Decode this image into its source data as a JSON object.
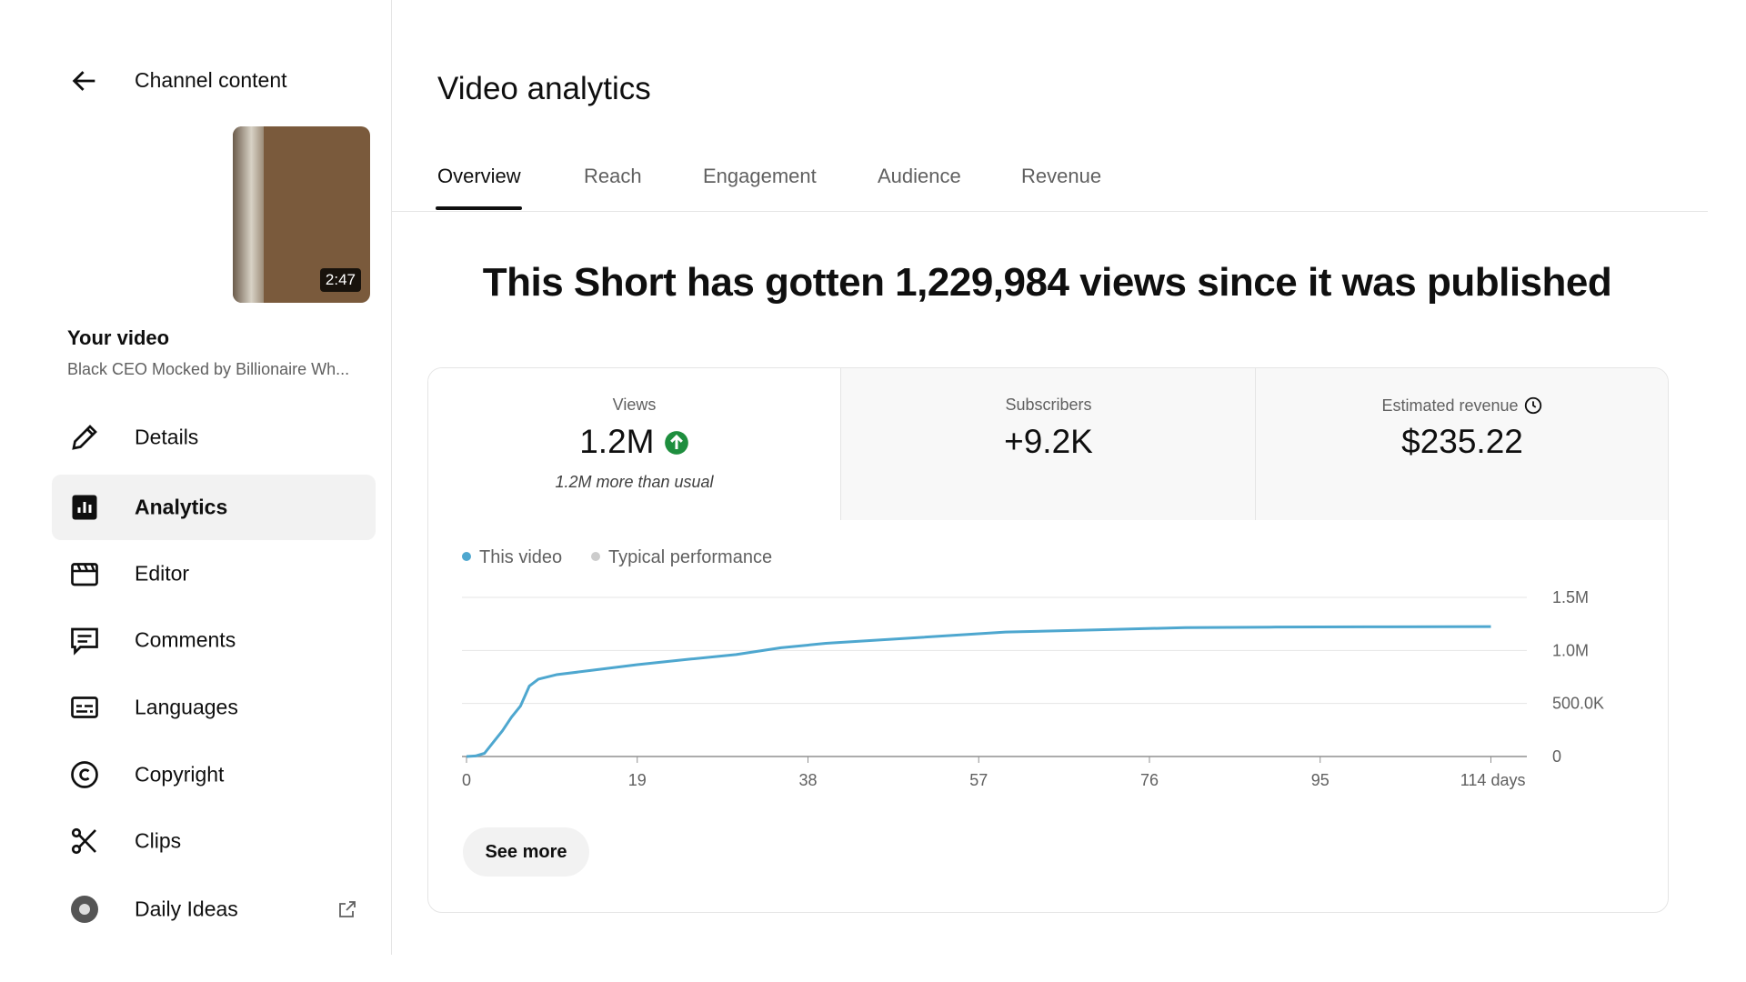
{
  "sidebar": {
    "back_label": "Channel content",
    "thumbnail_duration": "2:47",
    "your_video_label": "Your video",
    "video_title": "Black CEO Mocked by Billionaire Wh...",
    "nav": [
      "Details",
      "Analytics",
      "Editor",
      "Comments",
      "Languages",
      "Copyright",
      "Clips",
      "Daily Ideas"
    ]
  },
  "header": {
    "title": "Video analytics",
    "tabs": [
      "Overview",
      "Reach",
      "Engagement",
      "Audience",
      "Revenue"
    ]
  },
  "headline": "This Short has gotten 1,229,984 views since it was published",
  "metrics": [
    {
      "label": "Views",
      "value": "1.2M",
      "note": "1.2M more than usual"
    },
    {
      "label": "Subscribers",
      "value": "+9.2K"
    },
    {
      "label": "Estimated revenue",
      "value": "$235.22"
    }
  ],
  "chart_data": {
    "type": "line",
    "x": [
      0,
      1,
      2,
      3,
      4,
      5,
      6,
      7,
      8,
      10,
      14,
      19,
      25,
      30,
      35,
      40,
      50,
      60,
      70,
      80,
      90,
      100,
      114
    ],
    "series": [
      {
        "name": "This video",
        "color": "#4ea7cf",
        "values": [
          0,
          5000,
          30000,
          137000,
          243000,
          370000,
          475000,
          665000,
          729000,
          771000,
          813000,
          866000,
          919000,
          961000,
          1025000,
          1067000,
          1120000,
          1173000,
          1194000,
          1215000,
          1220000,
          1222000,
          1225000
        ]
      },
      {
        "name": "Typical performance",
        "color": "#cccccc",
        "values": [
          null,
          null,
          null,
          null,
          null,
          null,
          null,
          null,
          null,
          null,
          null,
          null,
          null,
          null,
          null,
          null,
          null,
          null,
          null,
          null,
          null,
          null,
          null
        ]
      }
    ],
    "xlim": [
      0,
      118
    ],
    "ylim": [
      0,
      1500000
    ],
    "xticks": [
      0,
      19,
      38,
      57,
      76,
      95,
      {
        "value": 114,
        "label": "114 days"
      }
    ],
    "yticks": [
      0,
      {
        "value": 500000,
        "label": "500.0K"
      },
      {
        "value": 1000000,
        "label": "1.0M"
      },
      {
        "value": 1500000,
        "label": "1.5M"
      }
    ],
    "grid": true
  },
  "see_more": "See more"
}
